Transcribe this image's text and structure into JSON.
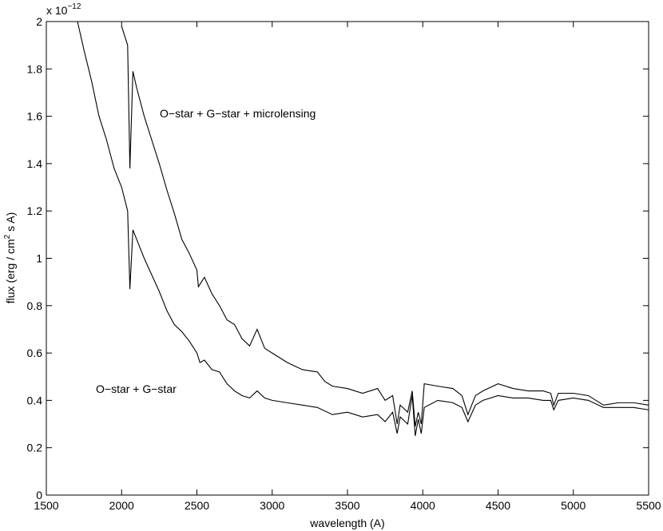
{
  "chart_data": {
    "type": "line",
    "xlabel": "wavelength (A)",
    "ylabel": [
      "flux (erg / cm",
      "2",
      " s A)"
    ],
    "y_scale_label": [
      "x 10",
      "−12"
    ],
    "xlim": [
      1500,
      5500
    ],
    "xticks": [
      1500,
      2000,
      2500,
      3000,
      3500,
      4000,
      4500,
      5000,
      5500
    ],
    "ylim": [
      0,
      2
    ],
    "yticks": [
      0,
      0.2,
      0.4,
      0.6,
      0.8,
      1,
      1.2,
      1.4,
      1.6,
      1.8,
      2
    ],
    "grid": false,
    "series": [
      {
        "name": "O−star + G−star",
        "color": "#000000",
        "x": [
          1707,
          1750,
          1800,
          1850,
          1900,
          1950,
          2000,
          2040,
          2055,
          2075,
          2100,
          2150,
          2200,
          2250,
          2300,
          2350,
          2400,
          2450,
          2500,
          2520,
          2550,
          2600,
          2650,
          2700,
          2750,
          2800,
          2850,
          2900,
          2950,
          3000,
          3100,
          3200,
          3300,
          3400,
          3500,
          3600,
          3700,
          3750,
          3800,
          3830,
          3850,
          3900,
          3930,
          3950,
          3970,
          3990,
          4010,
          4100,
          4200,
          4260,
          4300,
          4350,
          4400,
          4500,
          4600,
          4700,
          4800,
          4850,
          4870,
          4900,
          5000,
          5100,
          5200,
          5300,
          5400,
          5500
        ],
        "values": [
          2.0,
          1.88,
          1.75,
          1.6,
          1.5,
          1.38,
          1.3,
          1.2,
          0.87,
          1.12,
          1.08,
          1.0,
          0.93,
          0.86,
          0.78,
          0.72,
          0.69,
          0.65,
          0.6,
          0.56,
          0.57,
          0.53,
          0.52,
          0.47,
          0.44,
          0.42,
          0.41,
          0.44,
          0.41,
          0.4,
          0.39,
          0.38,
          0.37,
          0.34,
          0.35,
          0.33,
          0.34,
          0.31,
          0.35,
          0.26,
          0.33,
          0.3,
          0.42,
          0.25,
          0.32,
          0.26,
          0.37,
          0.4,
          0.39,
          0.37,
          0.31,
          0.38,
          0.4,
          0.42,
          0.41,
          0.41,
          0.4,
          0.4,
          0.36,
          0.4,
          0.41,
          0.4,
          0.37,
          0.37,
          0.37,
          0.36
        ]
      },
      {
        "name": "O−star + G−star + microlensing",
        "color": "#000000",
        "x": [
          2000,
          2040,
          2055,
          2075,
          2100,
          2150,
          2200,
          2250,
          2300,
          2350,
          2400,
          2450,
          2500,
          2510,
          2550,
          2600,
          2650,
          2700,
          2750,
          2800,
          2850,
          2900,
          2950,
          3000,
          3100,
          3200,
          3300,
          3350,
          3400,
          3500,
          3600,
          3700,
          3750,
          3800,
          3830,
          3850,
          3900,
          3930,
          3950,
          3970,
          3990,
          4010,
          4100,
          4200,
          4260,
          4300,
          4350,
          4400,
          4500,
          4600,
          4700,
          4800,
          4850,
          4870,
          4900,
          5000,
          5100,
          5200,
          5300,
          5400,
          5500
        ],
        "values": [
          1.98,
          1.9,
          1.38,
          1.79,
          1.72,
          1.6,
          1.5,
          1.4,
          1.29,
          1.19,
          1.08,
          1.02,
          0.95,
          0.88,
          0.92,
          0.85,
          0.8,
          0.74,
          0.72,
          0.66,
          0.63,
          0.7,
          0.62,
          0.6,
          0.56,
          0.53,
          0.52,
          0.48,
          0.46,
          0.45,
          0.43,
          0.45,
          0.4,
          0.42,
          0.3,
          0.38,
          0.35,
          0.44,
          0.29,
          0.35,
          0.3,
          0.47,
          0.46,
          0.45,
          0.42,
          0.34,
          0.42,
          0.44,
          0.47,
          0.45,
          0.44,
          0.44,
          0.43,
          0.38,
          0.43,
          0.43,
          0.42,
          0.38,
          0.39,
          0.39,
          0.38
        ]
      }
    ]
  }
}
